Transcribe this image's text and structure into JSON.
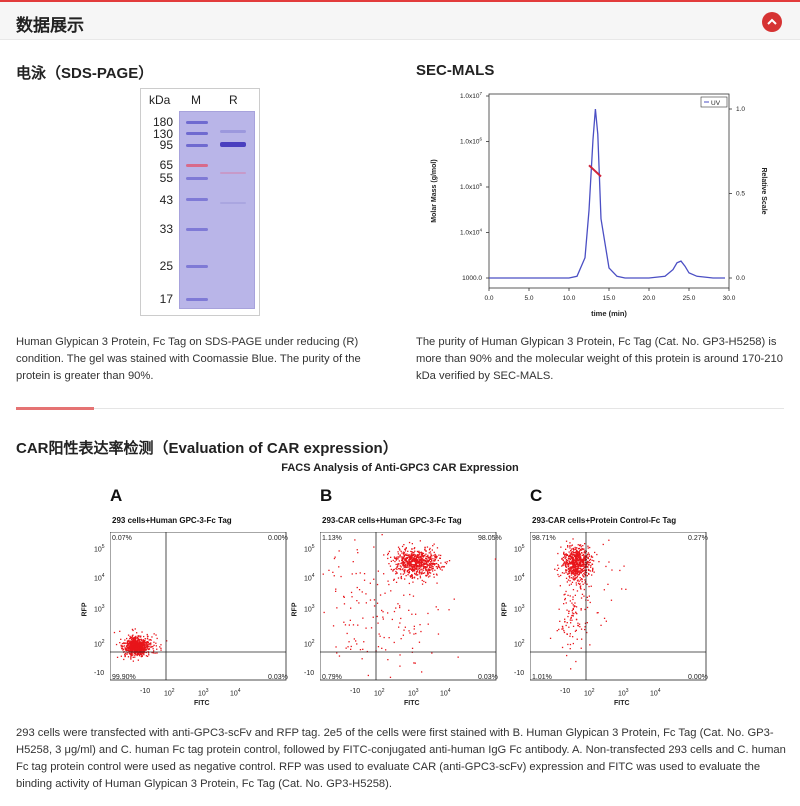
{
  "header": {
    "title": "数据展示"
  },
  "sds": {
    "title": "电泳（SDS-PAGE）",
    "lane_labels": [
      "kDa",
      "M",
      "R"
    ],
    "kda_markers": [
      "180",
      "130",
      "95",
      "65",
      "55",
      "43",
      "33",
      "25",
      "17"
    ],
    "caption": "Human Glypican 3 Protein, Fc Tag on SDS-PAGE under reducing (R) condition. The gel was stained with Coomassie Blue. The purity of the protein is greater than 90%."
  },
  "secmals": {
    "title": "SEC-MALS",
    "caption": "The purity of Human Glypican 3 Protein, Fc Tag (Cat. No. GP3-H5258) is more than 90% and the molecular weight of this protein is around 170-210 kDa verified by SEC-MALS.",
    "chart_data": {
      "type": "line",
      "xlabel": "time (min)",
      "ylabel": "Molar Mass (g/mol)",
      "y2label": "Relative Scale",
      "legend": "UV",
      "xlim": [
        0,
        30
      ],
      "x_ticks": [
        "0.0",
        "5.0",
        "10.0",
        "15.0",
        "20.0",
        "25.0",
        "30.0"
      ],
      "y_ticks": [
        "1000.0",
        "1.0x10",
        "1.0x10",
        "1.0x10",
        "1.0x10"
      ],
      "y_tick_exponents": [
        "",
        "4",
        "5",
        "6",
        "7"
      ],
      "y2_ticks": [
        "0.0",
        "0.5",
        "1.0"
      ],
      "series": [
        {
          "name": "UV",
          "x": [
            0,
            10,
            11,
            12,
            12.5,
            13,
            13.3,
            13.6,
            14,
            15,
            16,
            17,
            20,
            22,
            23,
            23.5,
            24,
            24.5,
            25,
            26,
            28,
            29.5
          ],
          "y": [
            0,
            0,
            0.01,
            0.12,
            0.4,
            0.82,
            1.0,
            0.85,
            0.35,
            0.06,
            0.01,
            0,
            0,
            0.01,
            0.05,
            0.09,
            0.1,
            0.07,
            0.03,
            0.01,
            0,
            0
          ]
        }
      ],
      "molar_mass_segment": {
        "x": [
          12.5,
          14.0
        ],
        "y": [
          300000,
          170000
        ]
      }
    }
  },
  "car": {
    "title": "CAR阳性表达率检测（Evaluation of CAR expression）",
    "facs_title": "FACS Analysis of Anti-GPC3 CAR Expression",
    "axis_x": "FITC",
    "axis_y": "RFP",
    "x_ticks": [
      "-10",
      "10",
      "10",
      "10"
    ],
    "x_tick_exp": [
      "",
      "2",
      "3",
      "4"
    ],
    "y_ticks": [
      "10",
      "10",
      "10",
      "10",
      "-10"
    ],
    "y_tick_exp": [
      "5",
      "4",
      "3",
      "2",
      ""
    ],
    "panels": [
      {
        "letter": "A",
        "title": "293 cells+Human GPC-3-Fc Tag",
        "ul": "0.07%",
        "ur": "0.00%",
        "ll": "99.90%",
        "lr": "0.03%"
      },
      {
        "letter": "B",
        "title": "293-CAR cells+Human GPC-3-Fc Tag",
        "ul": "1.13%",
        "ur": "98.05%",
        "ll": "0.79%",
        "lr": "0.03%"
      },
      {
        "letter": "C",
        "title": "293-CAR cells+Protein Control-Fc Tag",
        "ul": "98.71%",
        "ur": "0.27%",
        "ll": "1.01%",
        "lr": "0.00%"
      }
    ],
    "caption": "293 cells were transfected with anti-GPC3-scFv and RFP tag. 2e5 of the cells were first stained with B. Human Glypican 3 Protein, Fc Tag (Cat. No. GP3-H5258, 3 μg/ml) and C. human Fc tag protein control, followed by FITC-conjugated anti-human IgG Fc antibody. A. Non-transfected 293 cells and C. human Fc tag protein control were used as negative control. RFP was used to evaluate CAR (anti-GPC3-scFv) expression and FITC was used to evaluate the binding activity of Human Glypican 3 Protein, Fc Tag (Cat. No. GP3-H5258)."
  },
  "colors": {
    "accent": "#d63333",
    "uv_line": "#4b4fc4",
    "facs_dot": "#e8141a",
    "gel": "#b9b5e8",
    "band": "#4a3fbf"
  }
}
